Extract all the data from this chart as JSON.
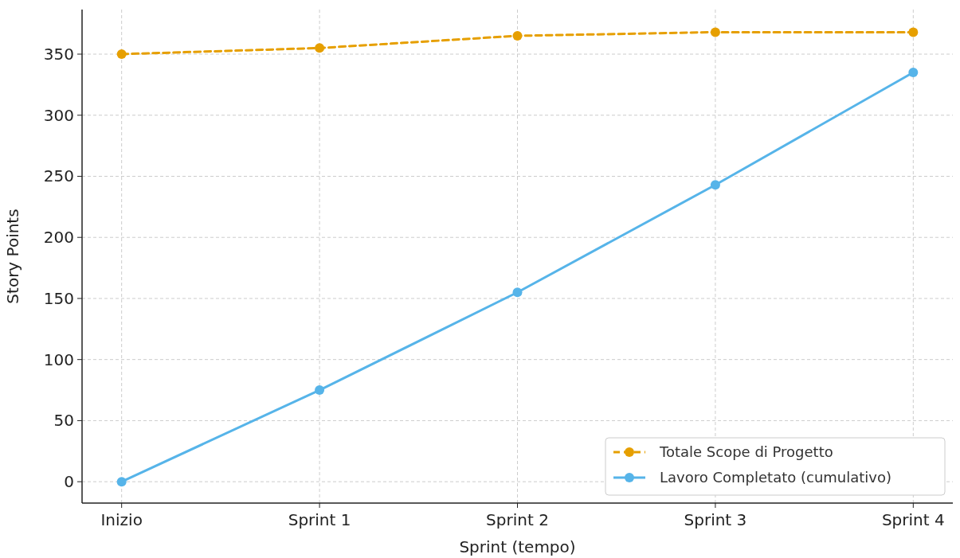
{
  "chart_data": {
    "type": "line",
    "xlabel": "Sprint (tempo)",
    "ylabel": "Story Points",
    "categories": [
      "Inizio",
      "Sprint 1",
      "Sprint 2",
      "Sprint 3",
      "Sprint 4"
    ],
    "series": [
      {
        "name": "Totale Scope di Progetto",
        "color": "#e69f00",
        "line_style": "dashed",
        "values": [
          350,
          355,
          365,
          368,
          368
        ]
      },
      {
        "name": "Lavoro Completato (cumulativo)",
        "color": "#56b4e9",
        "line_style": "solid",
        "values": [
          0,
          75,
          155,
          243,
          335
        ]
      }
    ],
    "ylim": [
      -17.5,
      386.5
    ],
    "yticks": [
      0,
      50,
      100,
      150,
      200,
      250,
      300,
      350
    ],
    "grid": true,
    "legend": "bottom right",
    "marker": "circle"
  }
}
